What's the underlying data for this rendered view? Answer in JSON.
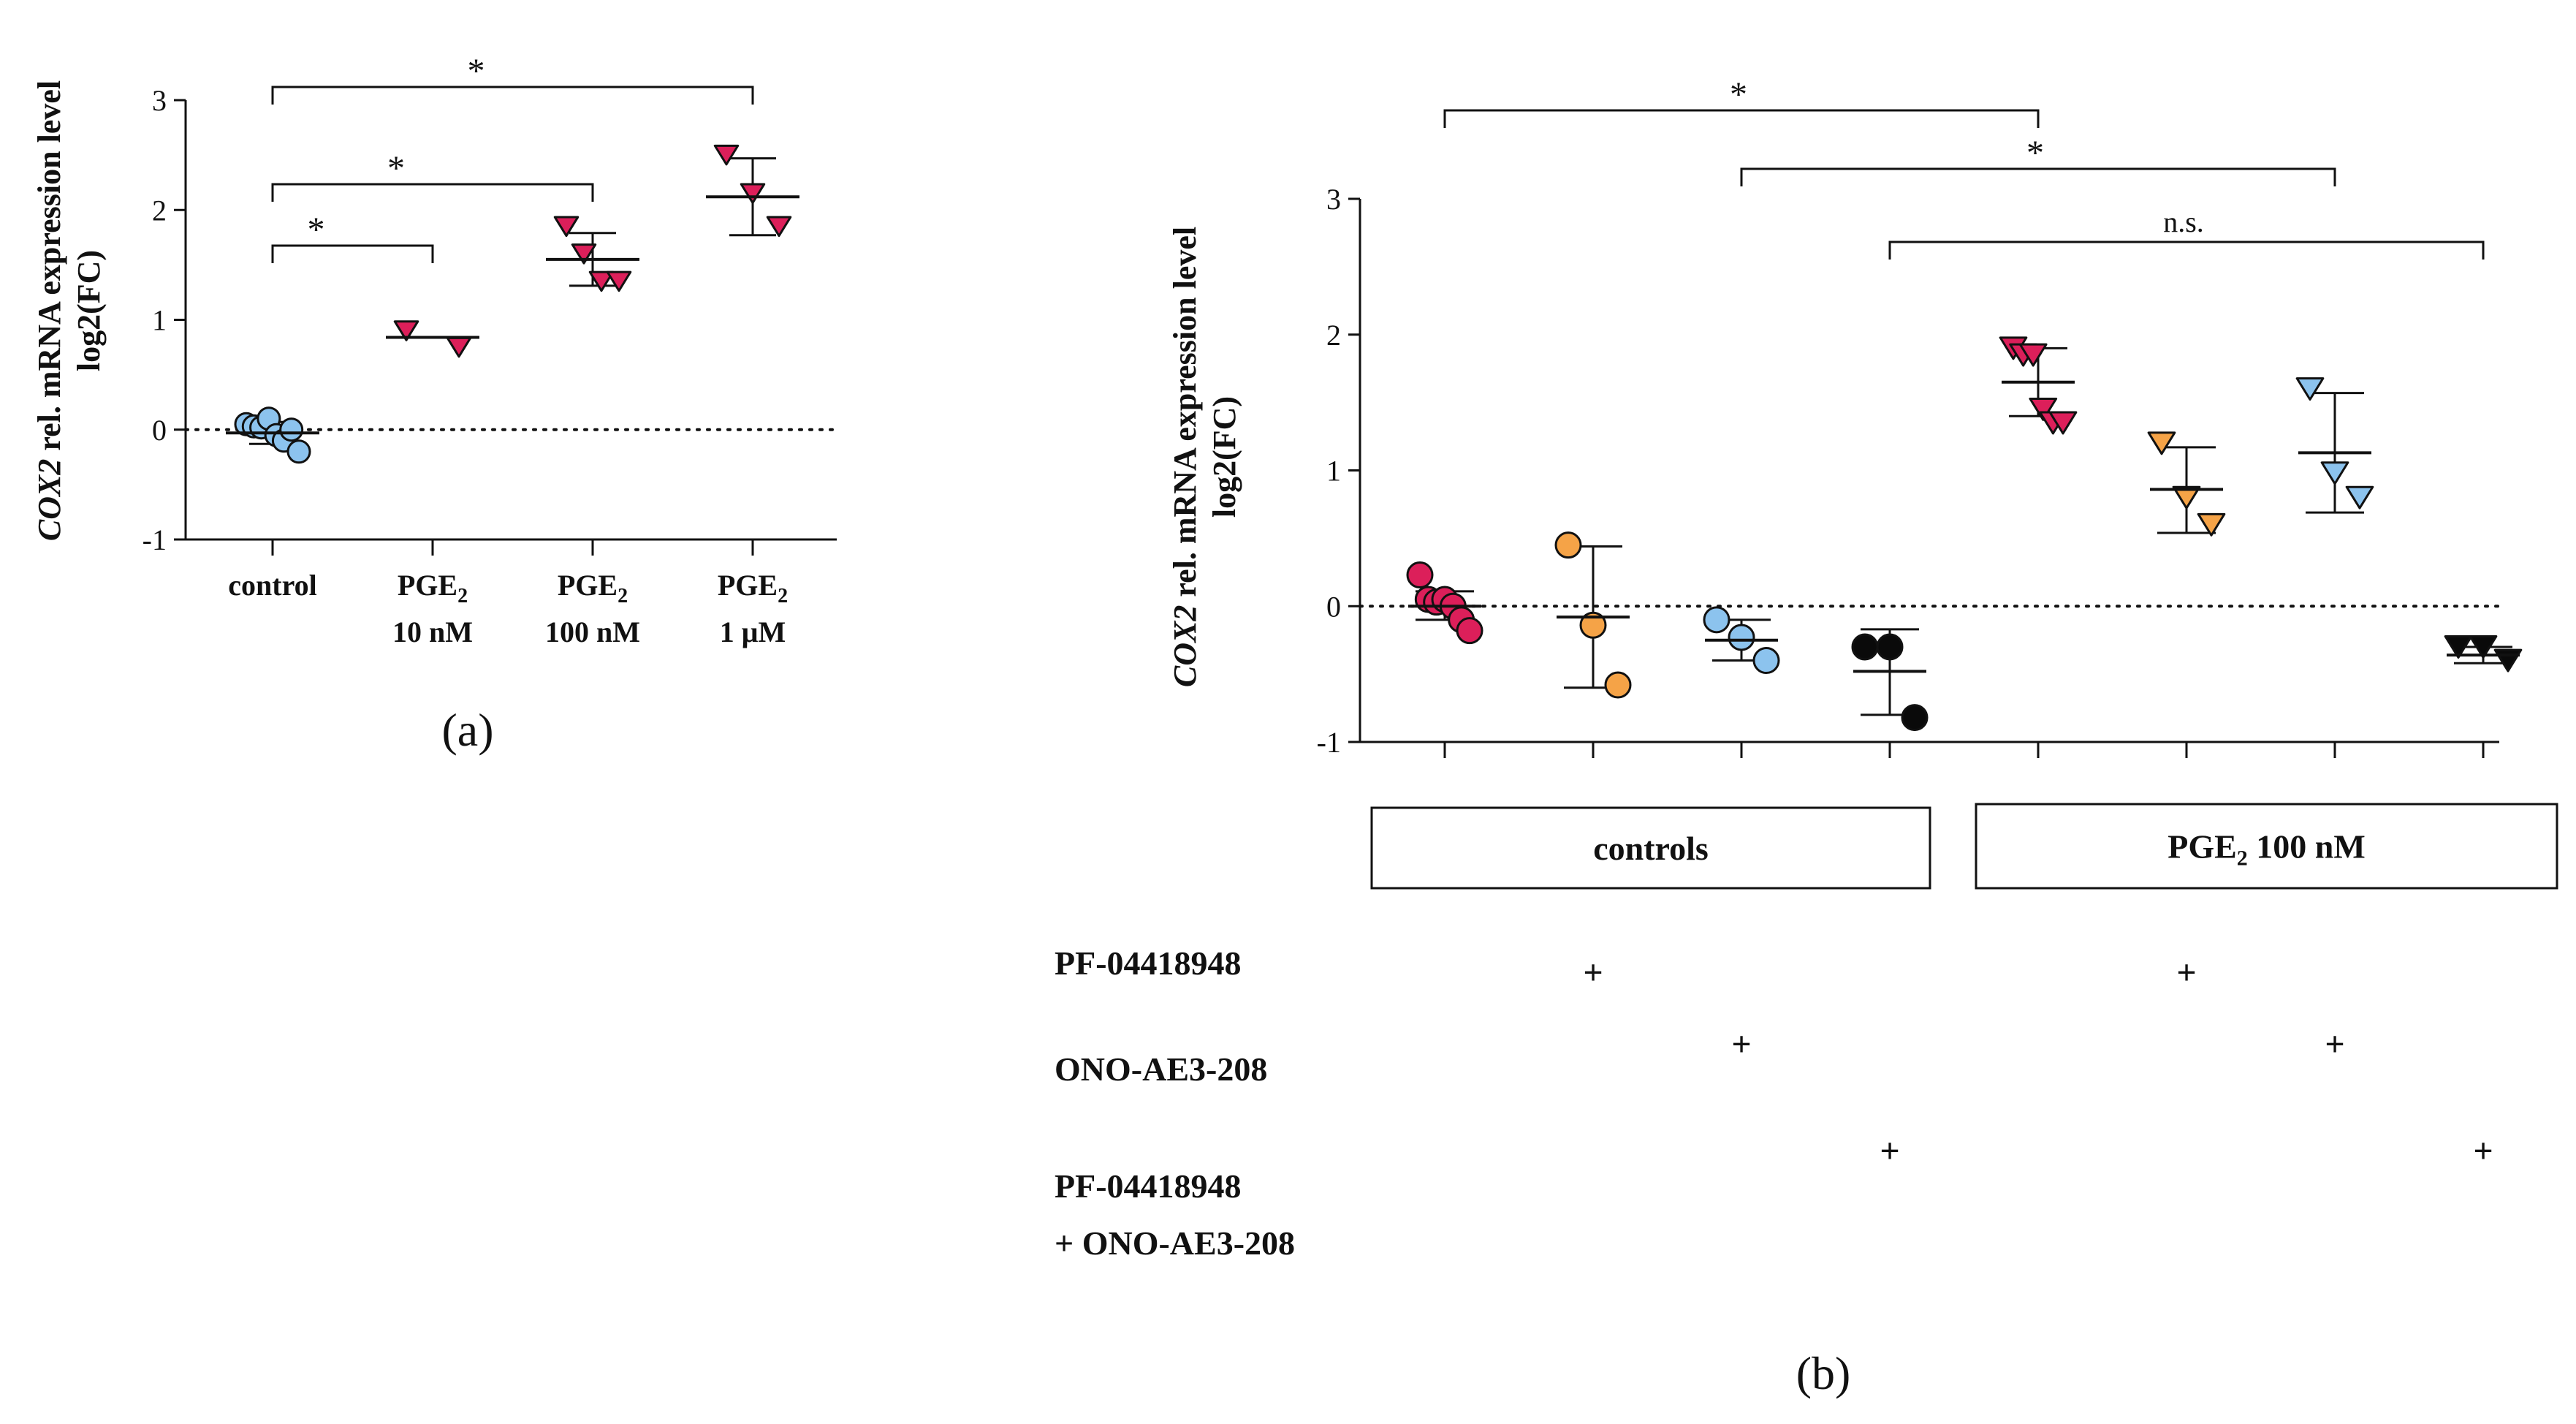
{
  "chart_data": [
    {
      "panel": "(a)",
      "type": "scatter",
      "ylabel_italic": "COX2",
      "ylabel_rest": " rel. mRNA expression level",
      "ylabel_line2": "log2(FC)",
      "ylim": [
        -1,
        3
      ],
      "yticks": [
        "-1",
        "0",
        "1",
        "2",
        "3"
      ],
      "categories": [
        {
          "line1": "control",
          "line2": ""
        },
        {
          "line1": "PGE",
          "sub": "2",
          "line2": "10 nM"
        },
        {
          "line1": "PGE",
          "sub": "2",
          "line2": "100 nM"
        },
        {
          "line1": "PGE",
          "sub": "2",
          "line2": "1 μM"
        }
      ],
      "series": [
        {
          "name": "control",
          "marker": "circle",
          "color": "#8cc3ee",
          "mean": -0.03,
          "sd_low": -0.13,
          "sd_high": 0.07,
          "values": [
            0.05,
            0.03,
            0.02,
            0.1,
            -0.05,
            -0.1,
            0.0,
            -0.2
          ]
        },
        {
          "name": "PGE2 10 nM",
          "marker": "triangle-down",
          "color": "#dc1f5a",
          "mean": 0.84,
          "sd_low": 0.84,
          "sd_high": 0.84,
          "values": [
            0.9,
            0.75
          ]
        },
        {
          "name": "PGE2 100 nM",
          "marker": "triangle-down",
          "color": "#dc1f5a",
          "mean": 1.55,
          "sd_low": 1.31,
          "sd_high": 1.79,
          "values": [
            1.85,
            1.6,
            1.35,
            1.35
          ]
        },
        {
          "name": "PGE2 1 μM",
          "marker": "triangle-down",
          "color": "#dc1f5a",
          "mean": 2.12,
          "sd_low": 1.77,
          "sd_high": 2.47,
          "values": [
            2.5,
            2.15,
            1.85
          ]
        }
      ],
      "significance": [
        {
          "from": 0,
          "to": 1,
          "label": "*"
        },
        {
          "from": 0,
          "to": 2,
          "label": "*"
        },
        {
          "from": 0,
          "to": 3,
          "label": "*"
        }
      ],
      "reference_line": 0
    },
    {
      "panel": "(b)",
      "type": "scatter",
      "ylabel_italic": "COX2",
      "ylabel_rest": " rel. mRNA expression level",
      "ylabel_line2": "log2(FC)",
      "ylim": [
        -1,
        3
      ],
      "yticks": [
        "-1",
        "0",
        "1",
        "2",
        "3"
      ],
      "series": [
        {
          "name": "control",
          "marker": "circle",
          "color": "#dc1f5a",
          "mean": 0.0,
          "sd_low": -0.1,
          "sd_high": 0.11,
          "values": [
            0.23,
            0.05,
            0.03,
            0.05,
            0.0,
            -0.1,
            -0.18
          ]
        },
        {
          "name": "PF-04418948",
          "marker": "circle",
          "color": "#f5a347",
          "mean": -0.08,
          "sd_low": -0.6,
          "sd_high": 0.44,
          "values": [
            0.45,
            -0.14,
            -0.58
          ]
        },
        {
          "name": "ONO-AE3-208",
          "marker": "circle",
          "color": "#8cc3ee",
          "mean": -0.25,
          "sd_low": -0.4,
          "sd_high": -0.1,
          "values": [
            -0.1,
            -0.23,
            -0.4
          ]
        },
        {
          "name": "PF-04418948 + ONO-AE3-208",
          "marker": "circle",
          "color": "#0a0a0a",
          "mean": -0.48,
          "sd_low": -0.8,
          "sd_high": -0.17,
          "values": [
            -0.3,
            -0.3,
            -0.82
          ]
        },
        {
          "name": "PGE2 100 nM",
          "marker": "triangle-down",
          "color": "#dc1f5a",
          "mean": 1.65,
          "sd_low": 1.4,
          "sd_high": 1.9,
          "values": [
            1.9,
            1.85,
            1.85,
            1.45,
            1.35,
            1.35
          ]
        },
        {
          "name": "PGE2 100 nM + PF-04418948",
          "marker": "triangle-down",
          "color": "#f5a347",
          "mean": 0.86,
          "sd_low": 0.54,
          "sd_high": 1.17,
          "values": [
            1.2,
            0.8,
            0.6
          ]
        },
        {
          "name": "PGE2 100 nM + ONO-AE3-208",
          "marker": "triangle-down",
          "color": "#8cc3ee",
          "mean": 1.13,
          "sd_low": 0.69,
          "sd_high": 1.57,
          "values": [
            1.6,
            0.98,
            0.8
          ]
        },
        {
          "name": "PGE2 100 nM + PF-04418948 + ONO-AE3-208",
          "marker": "triangle-down",
          "color": "#0a0a0a",
          "mean": -0.36,
          "sd_low": -0.42,
          "sd_high": -0.3,
          "values": [
            -0.3,
            -0.3,
            -0.4
          ]
        }
      ],
      "significance": [
        {
          "from": 0,
          "to": 4,
          "label": "*"
        },
        {
          "from": 2,
          "to": 6,
          "label": "*"
        },
        {
          "from": 3,
          "to": 7,
          "label": "n.s."
        }
      ],
      "reference_line": 0,
      "groups": [
        {
          "label": "controls"
        },
        {
          "label": "PGE",
          "sub": "2",
          "rest": " 100 nM"
        }
      ],
      "treatments": [
        {
          "label": "PF-04418948",
          "columns": [
            1,
            5
          ]
        },
        {
          "label": "ONO-AE3-208",
          "columns": [
            2,
            6
          ]
        },
        {
          "label": "PF-04418948",
          "label2": "+ ONO-AE3-208",
          "columns": [
            3,
            7
          ]
        }
      ],
      "plus_sign": "+"
    }
  ]
}
